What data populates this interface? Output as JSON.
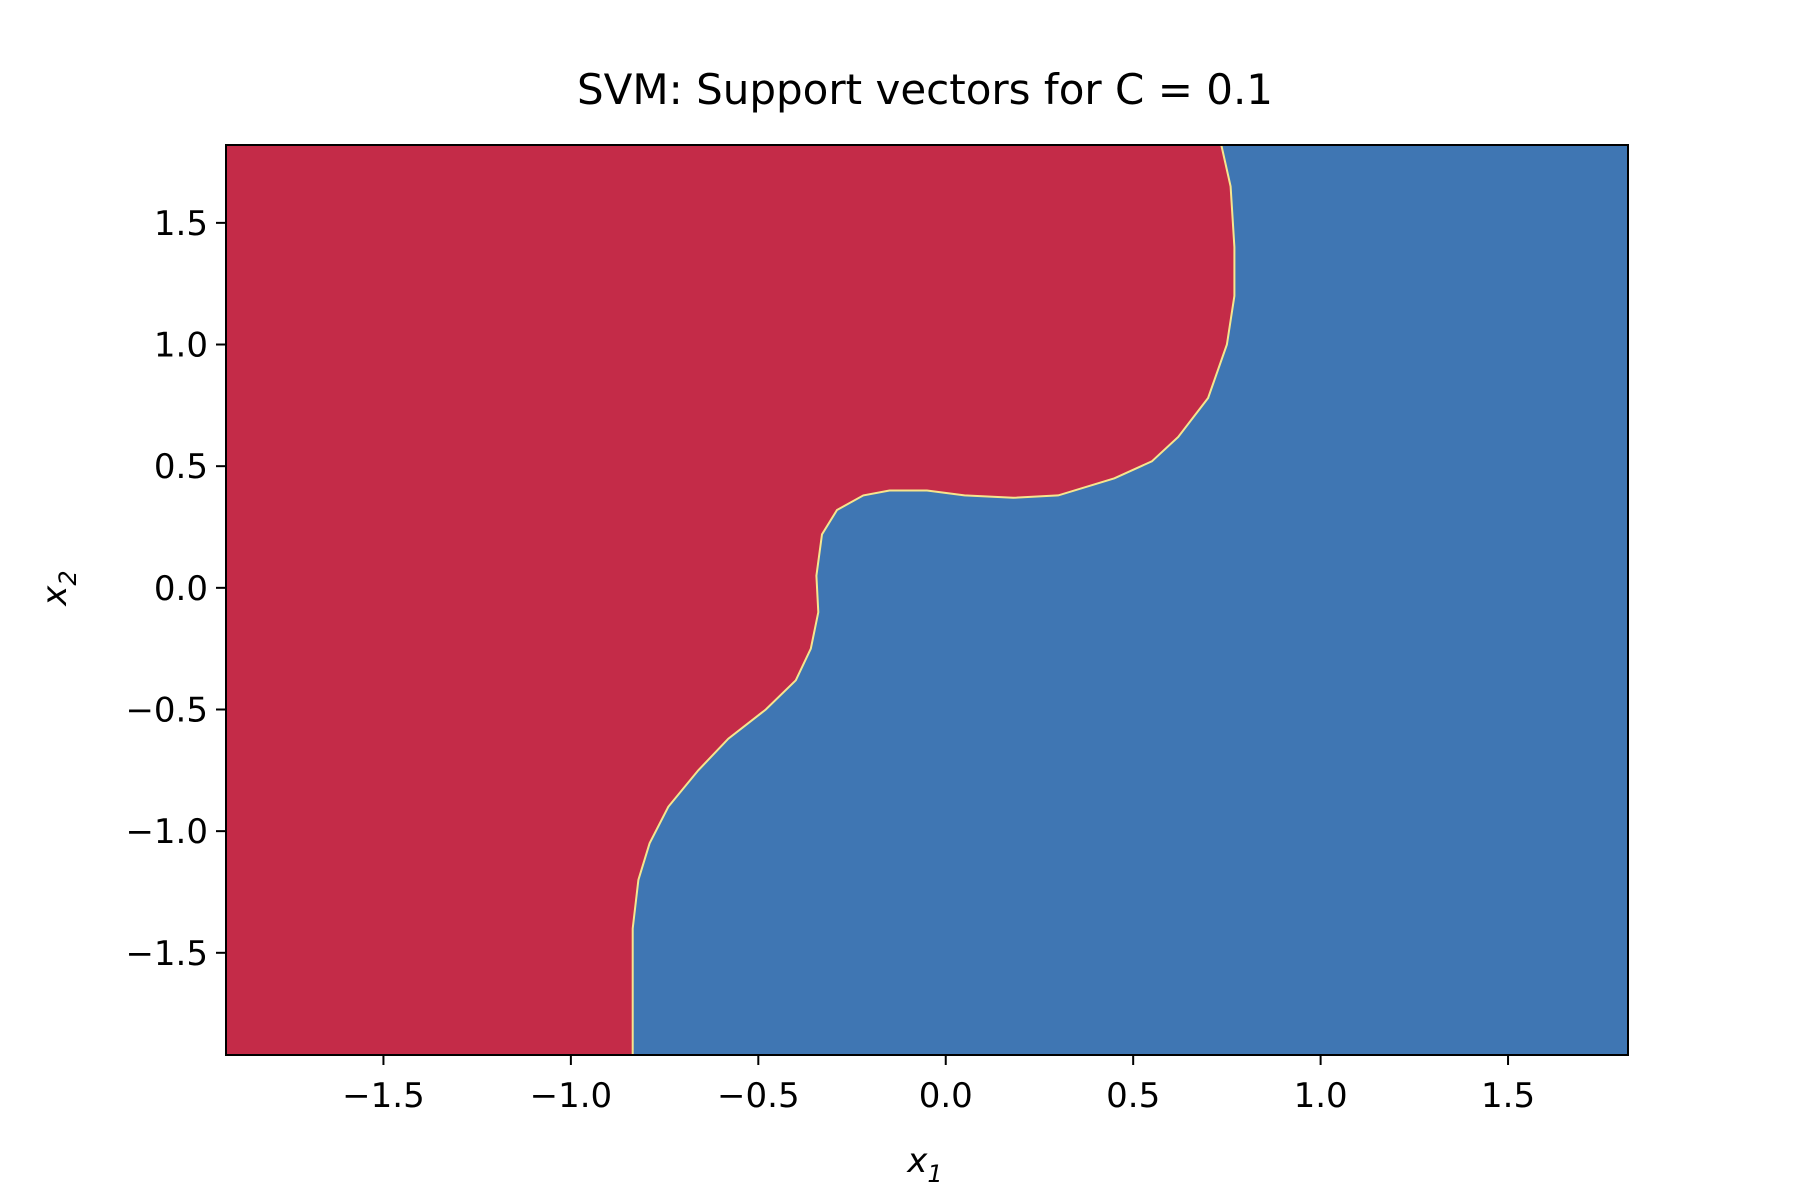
{
  "chart_data": {
    "type": "heatmap",
    "title": "SVM: Support vectors for C = 0.1",
    "xlabel": "x",
    "xlabel_sub": "1",
    "ylabel": "x",
    "ylabel_sub": "2",
    "xlim": [
      -1.92,
      1.82
    ],
    "ylim": [
      -1.92,
      1.82
    ],
    "xticks": [
      -1.5,
      -1.0,
      -0.5,
      0.0,
      0.5,
      1.0,
      1.5
    ],
    "xtick_labels": [
      "−1.5",
      "−1.0",
      "−0.5",
      "0.0",
      "0.5",
      "1.0",
      "1.5"
    ],
    "yticks": [
      1.5,
      1.0,
      0.5,
      0.0,
      -0.5,
      -1.0,
      -1.5
    ],
    "ytick_labels": [
      "1.5",
      "1.0",
      "0.5",
      "0.0",
      "−0.5",
      "−1.0",
      "−1.5"
    ],
    "grid": false,
    "regions": [
      {
        "class": "red",
        "color": "#c42b48"
      },
      {
        "class": "blue",
        "color": "#3f76b3"
      }
    ],
    "boundary_color": "#f6e58d",
    "decision_boundary": [
      [
        -0.835,
        -1.92
      ],
      [
        -0.835,
        -1.4
      ],
      [
        -0.82,
        -1.2
      ],
      [
        -0.79,
        -1.05
      ],
      [
        -0.74,
        -0.9
      ],
      [
        -0.66,
        -0.75
      ],
      [
        -0.58,
        -0.62
      ],
      [
        -0.48,
        -0.5
      ],
      [
        -0.4,
        -0.38
      ],
      [
        -0.36,
        -0.25
      ],
      [
        -0.34,
        -0.1
      ],
      [
        -0.345,
        0.05
      ],
      [
        -0.33,
        0.22
      ],
      [
        -0.29,
        0.32
      ],
      [
        -0.22,
        0.38
      ],
      [
        -0.15,
        0.4
      ],
      [
        -0.05,
        0.4
      ],
      [
        0.05,
        0.38
      ],
      [
        0.18,
        0.37
      ],
      [
        0.3,
        0.38
      ],
      [
        0.45,
        0.45
      ],
      [
        0.55,
        0.52
      ],
      [
        0.62,
        0.62
      ],
      [
        0.7,
        0.78
      ],
      [
        0.75,
        1.0
      ],
      [
        0.77,
        1.2
      ],
      [
        0.77,
        1.4
      ],
      [
        0.76,
        1.65
      ],
      [
        0.735,
        1.82
      ]
    ]
  }
}
